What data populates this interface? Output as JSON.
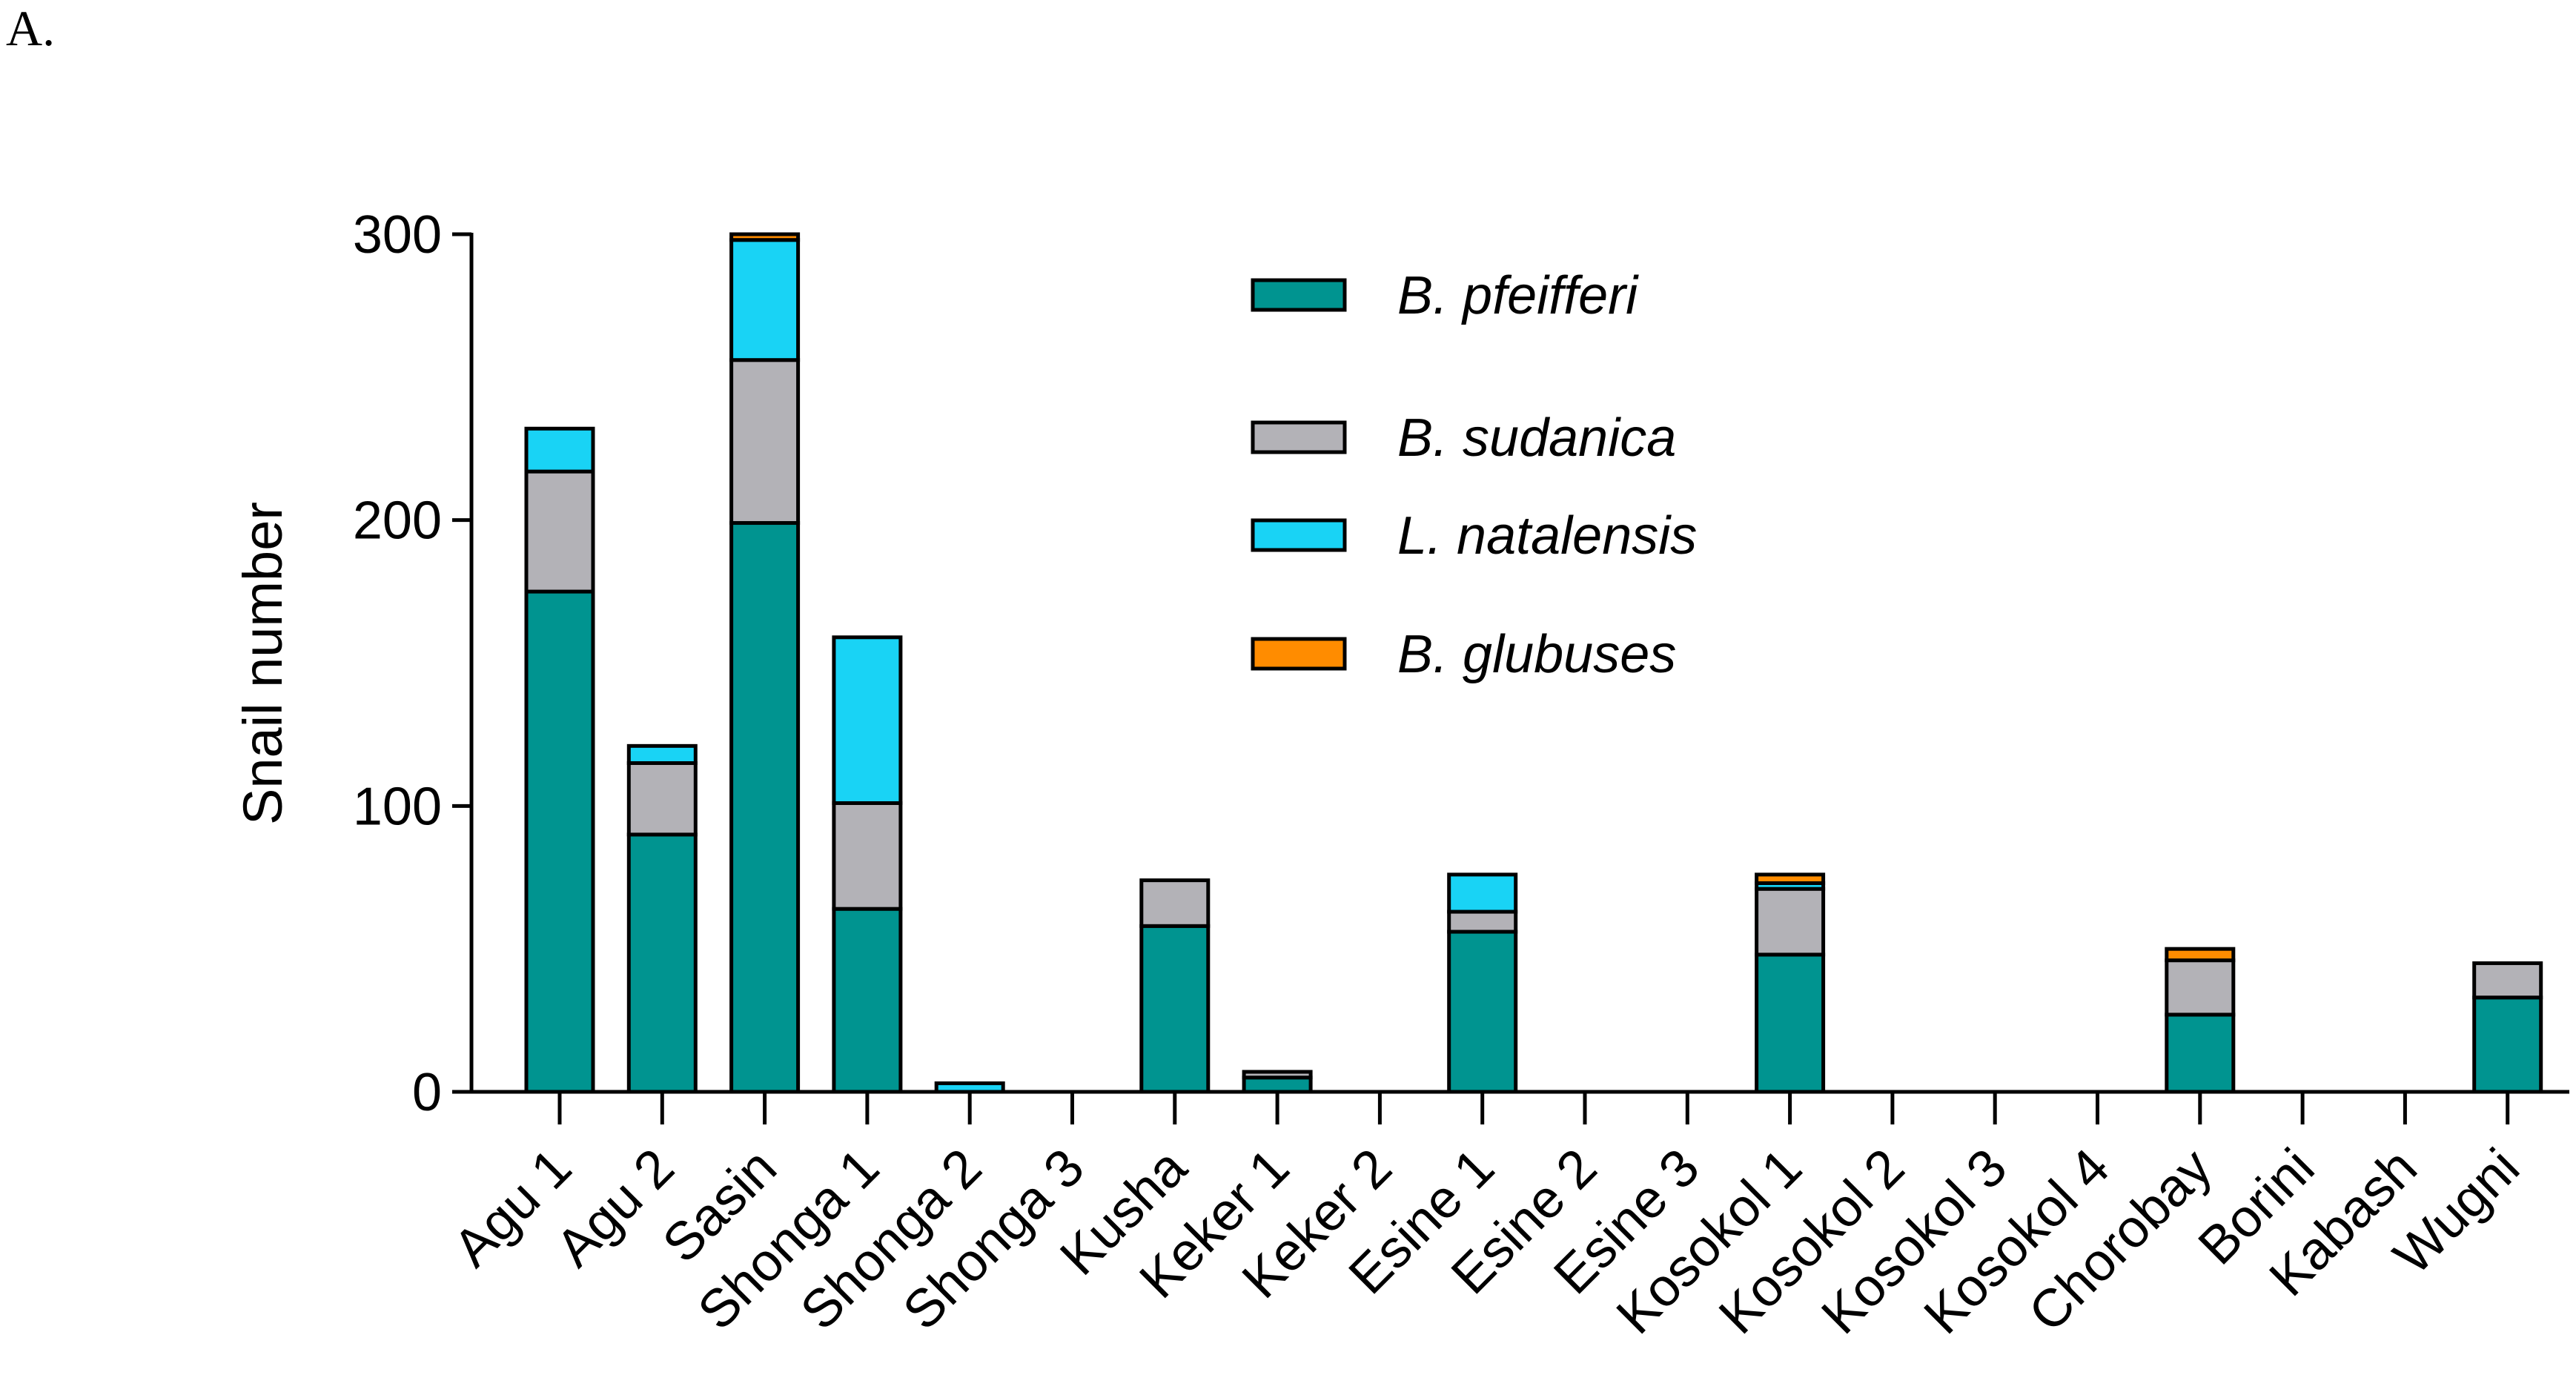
{
  "panel_label": "A.",
  "chart_data": {
    "type": "bar",
    "stacked": true,
    "title": "",
    "xlabel": "",
    "ylabel": "Snail number",
    "ylim": [
      0,
      300
    ],
    "yticks": [
      0,
      100,
      200,
      300
    ],
    "grid": false,
    "legend_position": "top-center",
    "categories": [
      "Agu 1",
      "Agu 2",
      "Sasin",
      "Shonga 1",
      "Shonga 2",
      "Shonga 3",
      "Kusha",
      "Keker 1",
      "Keker 2",
      "Esine 1",
      "Esine 2",
      "Esine 3",
      "Kosokol 1",
      "Kosokol 2",
      "Kosokol 3",
      "Kosokol 4",
      "Chorobay",
      "Borini",
      "Kabash",
      "Wugni"
    ],
    "series": [
      {
        "name": "B. pfeifferi",
        "color": "#009490",
        "values": [
          175,
          90,
          199,
          64,
          0,
          0,
          58,
          5,
          0,
          56,
          0,
          0,
          48,
          0,
          0,
          0,
          27,
          0,
          0,
          33
        ]
      },
      {
        "name": "B. sudanica",
        "color": "#B3B2B7",
        "values": [
          42,
          25,
          57,
          37,
          0,
          0,
          16,
          2,
          0,
          7,
          0,
          0,
          23,
          0,
          0,
          0,
          19,
          0,
          0,
          12
        ]
      },
      {
        "name": "L. natalensis",
        "color": "#19D3F5",
        "values": [
          15,
          6,
          42,
          58,
          3,
          0,
          0,
          0,
          0,
          13,
          0,
          0,
          2,
          0,
          0,
          0,
          0,
          0,
          0,
          0
        ]
      },
      {
        "name": "B. glubuses",
        "color": "#FF8C00",
        "values": [
          0,
          0,
          2,
          0,
          0,
          0,
          0,
          0,
          0,
          0,
          0,
          0,
          3,
          0,
          0,
          0,
          4,
          0,
          0,
          0
        ]
      }
    ]
  }
}
